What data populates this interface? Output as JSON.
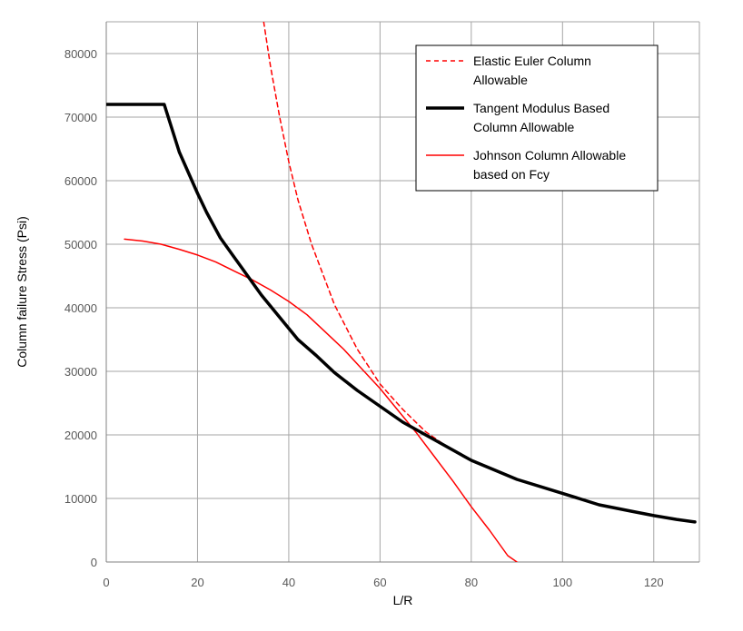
{
  "chart_data": {
    "type": "line",
    "title": "",
    "xlabel": "L/R",
    "ylabel": "Column failure Stress (Psi)",
    "xlim": [
      0,
      130
    ],
    "ylim": [
      0,
      85000
    ],
    "x_ticks": [
      0,
      20,
      40,
      60,
      80,
      100,
      120
    ],
    "y_ticks": [
      0,
      10000,
      20000,
      30000,
      40000,
      50000,
      60000,
      70000,
      80000
    ],
    "grid": true,
    "legend_position": "top-right",
    "series": [
      {
        "name": "Elastic Euler Column Allowable",
        "color": "#ff0000",
        "style": "dashed",
        "x": [
          34.5,
          36,
          38,
          40,
          42,
          45,
          50,
          55,
          60,
          65,
          70,
          75,
          80
        ],
        "y": [
          85000,
          78000,
          70000,
          63000,
          57000,
          50000,
          40500,
          33500,
          28000,
          24000,
          20500,
          18000,
          15900
        ]
      },
      {
        "name": "Tangent Modulus Based Column Allowable",
        "color": "#000000",
        "style": "solid-thick",
        "x": [
          0,
          12.7,
          16,
          20,
          22,
          25,
          28,
          30,
          34,
          38,
          42,
          46,
          50,
          55,
          60,
          65,
          70,
          75,
          80,
          85,
          90,
          100,
          108,
          115,
          120,
          125,
          129
        ],
        "y": [
          72000,
          72000,
          64500,
          58000,
          55000,
          51000,
          48000,
          46000,
          42000,
          38500,
          35000,
          32500,
          29800,
          27000,
          24500,
          22000,
          20000,
          18000,
          16000,
          14500,
          13000,
          10800,
          9000,
          8000,
          7300,
          6700,
          6300
        ]
      },
      {
        "name": "Johnson Column Allowable based on Fcy",
        "color": "#ff0000",
        "style": "solid-thin",
        "x": [
          4,
          8,
          12,
          16,
          20,
          24,
          28,
          32,
          36,
          40,
          44,
          48,
          52,
          56,
          60,
          64,
          68,
          72,
          76,
          80,
          84,
          88,
          90
        ],
        "y": [
          50800,
          50500,
          50000,
          49200,
          48300,
          47200,
          45800,
          44400,
          42800,
          41000,
          38900,
          36200,
          33500,
          30400,
          27300,
          23800,
          20300,
          16500,
          12700,
          8700,
          5000,
          1000,
          0
        ]
      }
    ]
  }
}
